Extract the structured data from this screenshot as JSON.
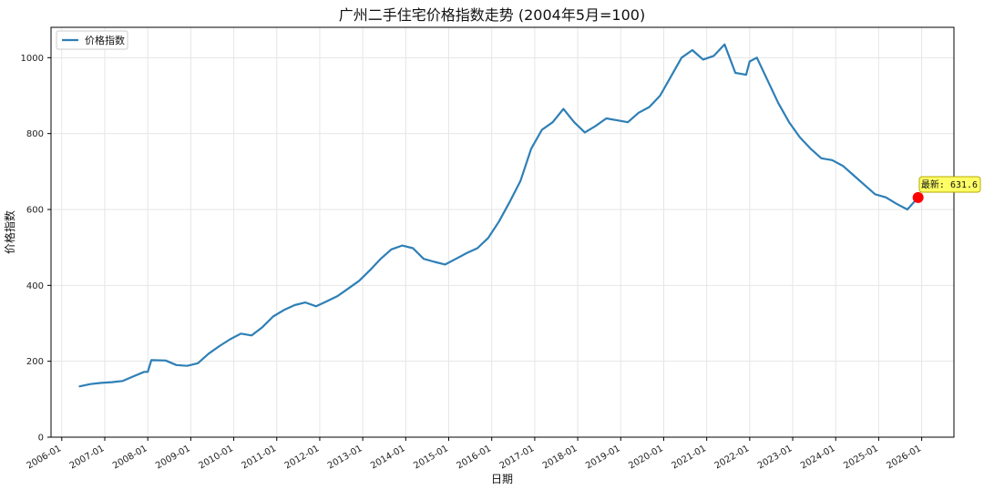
{
  "chart_data": {
    "type": "line",
    "title": "广州二手住宅价格指数走势 (2004年5月=100)",
    "xlabel": "日期",
    "ylabel": "价格指数",
    "x_ticks": [
      "2006-01",
      "2007-01",
      "2008-01",
      "2009-01",
      "2010-01",
      "2011-01",
      "2012-01",
      "2013-01",
      "2014-01",
      "2015-01",
      "2016-01",
      "2017-01",
      "2018-01",
      "2019-01",
      "2020-01",
      "2021-01",
      "2022-01",
      "2023-01",
      "2024-01",
      "2025-01",
      "2026-01"
    ],
    "y_ticks": [
      0,
      200,
      400,
      600,
      800,
      1000
    ],
    "xlim": [
      "2005-10",
      "2026-10"
    ],
    "ylim": [
      0,
      1080
    ],
    "grid": true,
    "legend_position": "upper-left",
    "series": [
      {
        "name": "价格指数",
        "color": "#2e7fb6",
        "x": [
          "2006-06",
          "2006-09",
          "2006-12",
          "2007-03",
          "2007-06",
          "2007-09",
          "2007-12",
          "2008-01",
          "2008-02",
          "2008-06",
          "2008-09",
          "2008-12",
          "2009-03",
          "2009-06",
          "2009-09",
          "2009-12",
          "2010-03",
          "2010-06",
          "2010-09",
          "2010-12",
          "2011-03",
          "2011-06",
          "2011-09",
          "2011-12",
          "2012-03",
          "2012-06",
          "2012-09",
          "2012-12",
          "2013-03",
          "2013-06",
          "2013-09",
          "2013-12",
          "2014-03",
          "2014-06",
          "2014-09",
          "2014-12",
          "2015-03",
          "2015-06",
          "2015-09",
          "2015-12",
          "2016-03",
          "2016-06",
          "2016-09",
          "2016-12",
          "2017-03",
          "2017-06",
          "2017-09",
          "2017-12",
          "2018-03",
          "2018-06",
          "2018-09",
          "2018-12",
          "2019-03",
          "2019-06",
          "2019-09",
          "2019-12",
          "2020-03",
          "2020-06",
          "2020-09",
          "2020-12",
          "2021-03",
          "2021-06",
          "2021-09",
          "2021-12",
          "2022-01",
          "2022-03",
          "2022-06",
          "2022-09",
          "2022-12",
          "2023-03",
          "2023-06",
          "2023-09",
          "2023-12",
          "2024-03",
          "2024-06",
          "2024-09",
          "2024-12",
          "2025-03",
          "2025-06",
          "2025-09",
          "2025-12"
        ],
        "values": [
          134,
          140,
          143,
          145,
          148,
          160,
          172,
          172,
          203,
          202,
          190,
          188,
          195,
          220,
          240,
          258,
          273,
          268,
          290,
          318,
          335,
          348,
          355,
          345,
          358,
          372,
          392,
          412,
          440,
          470,
          495,
          505,
          498,
          470,
          462,
          455,
          470,
          485,
          498,
          525,
          568,
          620,
          675,
          760,
          810,
          830,
          865,
          830,
          803,
          820,
          840,
          835,
          830,
          855,
          870,
          900,
          950,
          1000,
          1020,
          995,
          1005,
          1035,
          960,
          955,
          990,
          1000,
          940,
          880,
          830,
          790,
          760,
          735,
          730,
          715,
          690,
          665,
          640,
          632,
          615,
          600,
          631.6
        ]
      }
    ],
    "annotation": {
      "label": "最新: 631.6",
      "x": "2025-12",
      "y": 631.6,
      "marker_color": "#ff0000",
      "box_color": "#ffff66"
    }
  }
}
